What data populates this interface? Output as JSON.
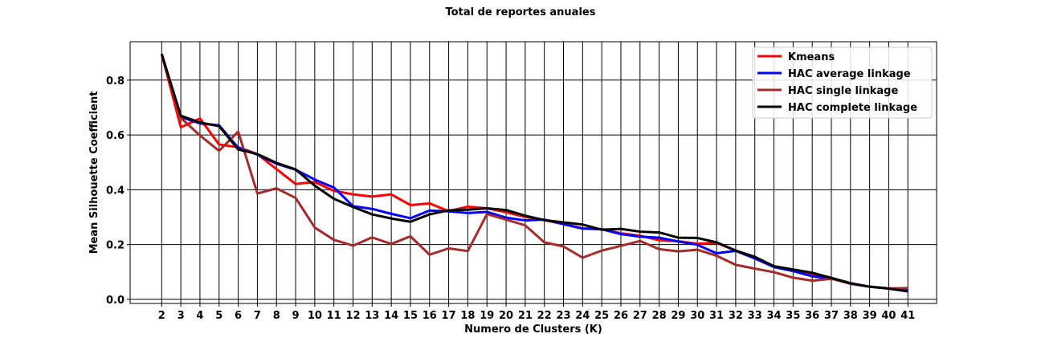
{
  "chart_data": {
    "type": "line",
    "title": "Total de reportes anuales",
    "xlabel": "Numero de Clusters (K)",
    "ylabel": "Mean Silhouette Coefficient",
    "x": [
      2,
      3,
      4,
      5,
      6,
      7,
      8,
      9,
      10,
      11,
      12,
      13,
      14,
      15,
      16,
      17,
      18,
      19,
      20,
      21,
      22,
      23,
      24,
      25,
      26,
      27,
      28,
      29,
      30,
      31,
      32,
      33,
      34,
      35,
      36,
      37,
      38,
      39,
      40,
      41
    ],
    "xlim": [
      0.35,
      42.5
    ],
    "ylim": [
      -0.015,
      0.94
    ],
    "yticks": [
      0.0,
      0.2,
      0.4,
      0.6,
      0.8
    ],
    "ytick_labels": [
      "0.0",
      "0.2",
      "0.4",
      "0.6",
      "0.8"
    ],
    "grid": true,
    "legend_position": "top-right",
    "series": [
      {
        "name": "Kmeans",
        "color": "#ff0000",
        "values": [
          0.895,
          0.628,
          0.66,
          0.565,
          0.555,
          0.53,
          0.475,
          0.421,
          0.428,
          0.396,
          0.383,
          0.375,
          0.383,
          0.344,
          0.35,
          0.322,
          0.338,
          0.332,
          0.318,
          0.301,
          0.289,
          0.275,
          0.259,
          0.256,
          0.241,
          0.232,
          0.216,
          0.212,
          0.203,
          0.206,
          0.178,
          0.151,
          0.119,
          0.105,
          0.09,
          0.076,
          0.057,
          0.046,
          0.04,
          0.033
        ]
      },
      {
        "name": "HAC average linkage",
        "color": "#0000ff",
        "values": [
          0.895,
          0.665,
          0.642,
          0.635,
          0.553,
          0.528,
          0.495,
          0.473,
          0.437,
          0.408,
          0.34,
          0.33,
          0.312,
          0.296,
          0.324,
          0.321,
          0.315,
          0.319,
          0.298,
          0.288,
          0.291,
          0.274,
          0.258,
          0.256,
          0.238,
          0.229,
          0.225,
          0.211,
          0.199,
          0.168,
          0.177,
          0.149,
          0.118,
          0.103,
          0.084,
          0.076,
          0.057,
          0.046,
          0.04,
          0.033
        ]
      },
      {
        "name": "HAC single linkage",
        "color": "#a52a2a",
        "values": [
          0.895,
          0.662,
          0.598,
          0.542,
          0.612,
          0.386,
          0.405,
          0.37,
          0.262,
          0.217,
          0.196,
          0.226,
          0.202,
          0.23,
          0.163,
          0.186,
          0.176,
          0.311,
          0.291,
          0.27,
          0.208,
          0.193,
          0.152,
          0.178,
          0.195,
          0.213,
          0.183,
          0.175,
          0.181,
          0.159,
          0.126,
          0.112,
          0.099,
          0.079,
          0.068,
          0.075,
          0.058,
          0.046,
          0.04,
          0.041
        ]
      },
      {
        "name": "HAC complete linkage",
        "color": "#000000",
        "values": [
          0.895,
          0.67,
          0.645,
          0.632,
          0.547,
          0.53,
          0.498,
          0.474,
          0.415,
          0.367,
          0.337,
          0.31,
          0.295,
          0.283,
          0.31,
          0.325,
          0.327,
          0.332,
          0.326,
          0.305,
          0.289,
          0.281,
          0.273,
          0.254,
          0.257,
          0.247,
          0.244,
          0.225,
          0.224,
          0.208,
          0.178,
          0.155,
          0.121,
          0.109,
          0.097,
          0.078,
          0.059,
          0.046,
          0.039,
          0.029
        ]
      }
    ]
  }
}
